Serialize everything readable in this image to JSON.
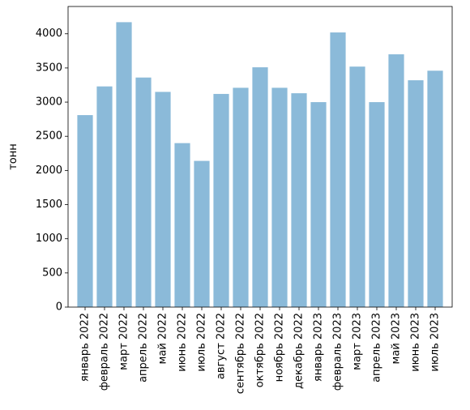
{
  "chart_data": {
    "type": "bar",
    "title": "",
    "xlabel": "",
    "ylabel": "тонн",
    "categories": [
      "январь 2022",
      "февраль 2022",
      "март 2022",
      "апрель 2022",
      "май 2022",
      "июнь 2022",
      "июль 2022",
      "август 2022",
      "сентябрь 2022",
      "октябрь 2022",
      "ноябрь 2022",
      "декабрь 2022",
      "январь 2023",
      "февраль 2023",
      "март 2023",
      "апрель 2023",
      "май 2023",
      "июнь 2023",
      "июль 2023"
    ],
    "values": [
      2810,
      3230,
      4170,
      3360,
      3150,
      2400,
      2140,
      3120,
      3210,
      3510,
      3210,
      3130,
      3000,
      4020,
      3520,
      3000,
      3700,
      3320,
      3460
    ],
    "ylim": [
      0,
      4400
    ],
    "yticks": [
      0,
      500,
      1000,
      1500,
      2000,
      2500,
      3000,
      3500,
      4000
    ],
    "bar_color": "#8bbad9",
    "grid": false,
    "legend": "none"
  }
}
